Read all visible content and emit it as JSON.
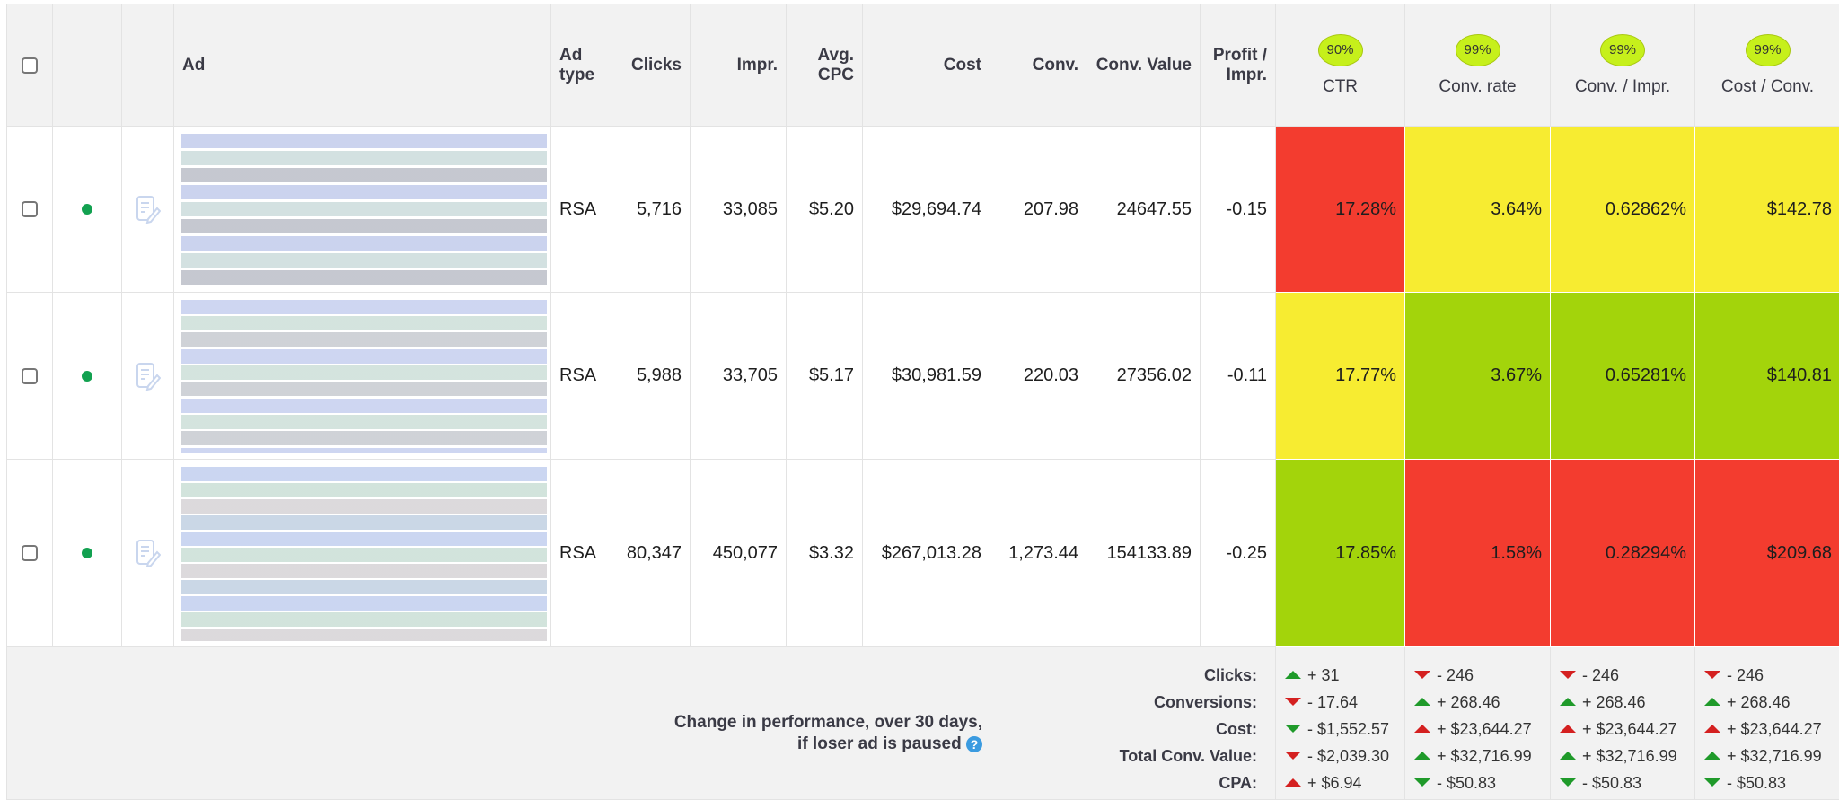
{
  "header": {
    "select_all": "",
    "columns": {
      "ad": "Ad",
      "ad_type_1": "Ad",
      "ad_type_2": "type",
      "clicks": "Clicks",
      "impr": "Impr.",
      "avg_cpc_1": "Avg.",
      "avg_cpc_2": "CPC",
      "cost": "Cost",
      "conv": "Conv.",
      "conv_value": "Conv. Value",
      "profit_1": "Profit /",
      "profit_2": "Impr.",
      "ctr": "CTR",
      "conv_rate": "Conv. rate",
      "conv_impr": "Conv. / Impr.",
      "cost_conv": "Cost / Conv."
    },
    "confidence": {
      "ctr": "90%",
      "conv_rate": "99%",
      "conv_impr": "99%",
      "cost_conv": "99%"
    }
  },
  "colors": {
    "red": "#f33c2f",
    "yellow": "#f7ec31",
    "green": "#a3d40b",
    "badge": "#c6f01b",
    "status_active": "#12a150",
    "delta_good": "#1f9a2a",
    "delta_bad": "#d42020"
  },
  "rows": [
    {
      "status": "enabled",
      "ad_type": "RSA",
      "clicks": "5,716",
      "impr": "33,085",
      "avg_cpc": "$5.20",
      "cost": "$29,694.74",
      "conv": "207.98",
      "conv_value": "24647.55",
      "profit_impr": "-0.15",
      "ctr": "17.28%",
      "conv_rate": "3.64%",
      "conv_impr": "0.62862%",
      "cost_conv": "$142.78",
      "ctr_color": "red",
      "conv_rate_color": "yellow",
      "conv_impr_color": "yellow",
      "cost_conv_color": "yellow"
    },
    {
      "status": "enabled",
      "ad_type": "RSA",
      "clicks": "5,988",
      "impr": "33,705",
      "avg_cpc": "$5.17",
      "cost": "$30,981.59",
      "conv": "220.03",
      "conv_value": "27356.02",
      "profit_impr": "-0.11",
      "ctr": "17.77%",
      "conv_rate": "3.67%",
      "conv_impr": "0.65281%",
      "cost_conv": "$140.81",
      "ctr_color": "yellow",
      "conv_rate_color": "green",
      "conv_impr_color": "green",
      "cost_conv_color": "green"
    },
    {
      "status": "enabled",
      "ad_type": "RSA",
      "clicks": "80,347",
      "impr": "450,077",
      "avg_cpc": "$3.32",
      "cost": "$267,013.28",
      "conv": "1,273.44",
      "conv_value": "154133.89",
      "profit_impr": "-0.25",
      "ctr": "17.85%",
      "conv_rate": "1.58%",
      "conv_impr": "0.28294%",
      "cost_conv": "$209.68",
      "ctr_color": "green",
      "conv_rate_color": "red",
      "conv_impr_color": "red",
      "cost_conv_color": "red"
    }
  ],
  "footer": {
    "title_line1": "Change in performance, over 30 days,",
    "title_line2": "if loser ad is paused",
    "help_icon": "?",
    "labels": [
      "Clicks:",
      "Conversions:",
      "Cost:",
      "Total Conv. Value:",
      "CPA:"
    ],
    "deltas": {
      "ctr": [
        {
          "dir": "up",
          "tone": "g",
          "text": "+ 31"
        },
        {
          "dir": "down",
          "tone": "r",
          "text": "- 17.64"
        },
        {
          "dir": "down",
          "tone": "g",
          "text": "- $1,552.57"
        },
        {
          "dir": "down",
          "tone": "r",
          "text": "- $2,039.30"
        },
        {
          "dir": "up",
          "tone": "r",
          "text": "+ $6.94"
        }
      ],
      "conv_rate": [
        {
          "dir": "down",
          "tone": "r",
          "text": "- 246"
        },
        {
          "dir": "up",
          "tone": "g",
          "text": "+ 268.46"
        },
        {
          "dir": "up",
          "tone": "r",
          "text": "+ $23,644.27"
        },
        {
          "dir": "up",
          "tone": "g",
          "text": "+ $32,716.99"
        },
        {
          "dir": "down",
          "tone": "g",
          "text": "- $50.83"
        }
      ],
      "conv_impr": [
        {
          "dir": "down",
          "tone": "r",
          "text": "- 246"
        },
        {
          "dir": "up",
          "tone": "g",
          "text": "+ 268.46"
        },
        {
          "dir": "up",
          "tone": "r",
          "text": "+ $23,644.27"
        },
        {
          "dir": "up",
          "tone": "g",
          "text": "+ $32,716.99"
        },
        {
          "dir": "down",
          "tone": "g",
          "text": "- $50.83"
        }
      ],
      "cost_conv": [
        {
          "dir": "down",
          "tone": "r",
          "text": "- 246"
        },
        {
          "dir": "up",
          "tone": "g",
          "text": "+ 268.46"
        },
        {
          "dir": "up",
          "tone": "r",
          "text": "+ $23,644.27"
        },
        {
          "dir": "up",
          "tone": "g",
          "text": "+ $32,716.99"
        },
        {
          "dir": "down",
          "tone": "g",
          "text": "- $50.83"
        }
      ]
    }
  }
}
